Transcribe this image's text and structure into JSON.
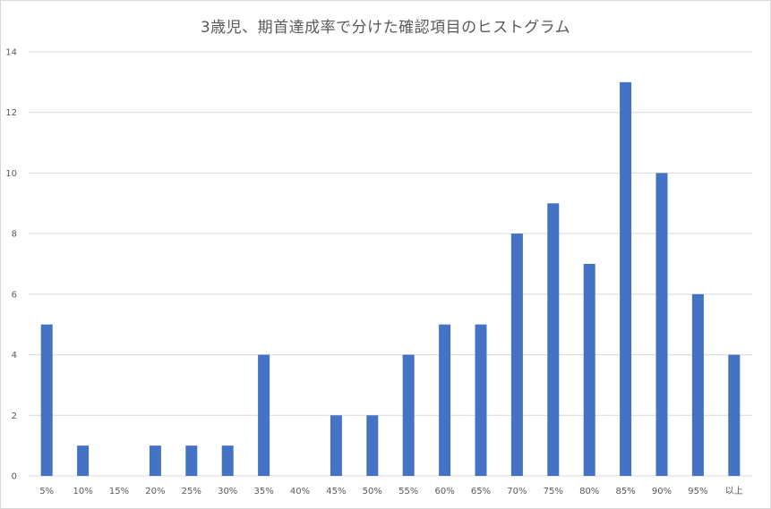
{
  "chart_data": {
    "type": "bar",
    "title": "3歳児、期首達成率で分けた確認項目のヒストグラム",
    "xlabel": "",
    "ylabel": "",
    "categories": [
      "5%",
      "10%",
      "15%",
      "20%",
      "25%",
      "30%",
      "35%",
      "40%",
      "45%",
      "50%",
      "55%",
      "60%",
      "65%",
      "70%",
      "75%",
      "80%",
      "85%",
      "90%",
      "95%",
      "以上"
    ],
    "values": [
      5,
      1,
      0,
      1,
      1,
      1,
      4,
      0,
      2,
      2,
      4,
      5,
      5,
      8,
      9,
      7,
      13,
      10,
      6,
      4
    ],
    "ylim": [
      0,
      14
    ],
    "yticks": [
      0,
      2,
      4,
      6,
      8,
      10,
      12,
      14
    ],
    "grid": true,
    "legend": "none",
    "bar_color": "#4472c4",
    "grid_color": "#d9d9d9"
  }
}
